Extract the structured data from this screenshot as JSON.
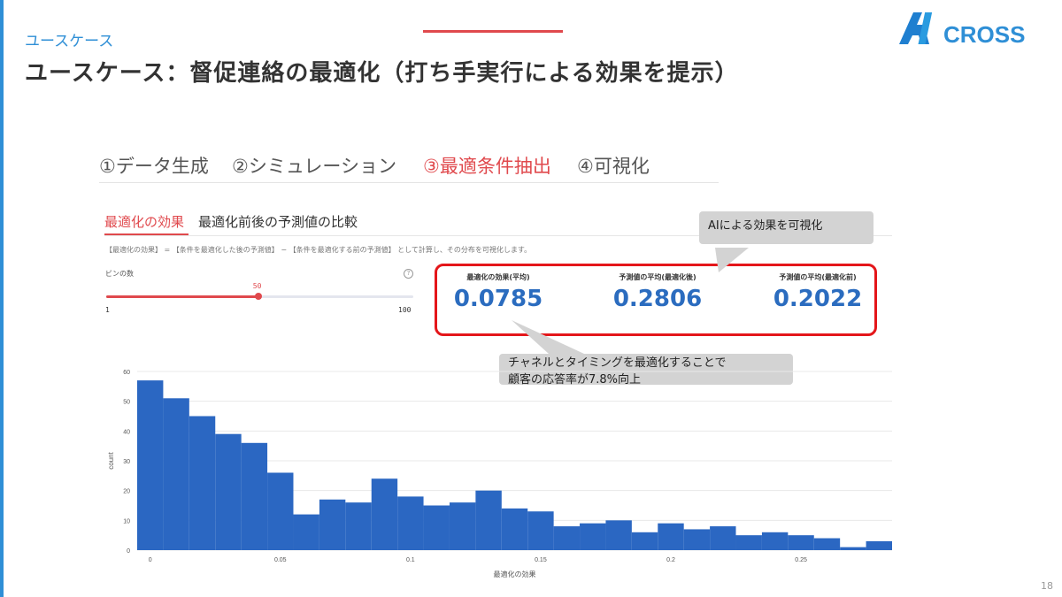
{
  "slide": {
    "section_label": "ユースケース",
    "title": "ユースケース：督促連絡の最適化（打ち手実行による効果を提示）",
    "logo_text": "AICROSS",
    "page_number": "18"
  },
  "steps": [
    {
      "label": "①データ生成",
      "active": false
    },
    {
      "label": "②シミュレーション",
      "active": false
    },
    {
      "label": "③最適条件抽出",
      "active": true
    },
    {
      "label": "④可視化",
      "active": false
    }
  ],
  "subtabs": {
    "active_label": "最適化の効果",
    "second_label": "最適化前後の予測値の比較"
  },
  "formula_text": "【最適化の効果】 = 【条件を最適化した後の予測値】 − 【条件を最適化する前の予測値】 として計算し、その分布を可視化します。",
  "bins_slider": {
    "label": "ビンの数",
    "value": "50",
    "min": "1",
    "max": "100",
    "fraction": 0.495
  },
  "metrics": [
    {
      "label": "最適化の効果(平均)",
      "value": "0.0785"
    },
    {
      "label": "予測値の平均(最適化後)",
      "value": "0.2806"
    },
    {
      "label": "予測値の平均(最適化前)",
      "value": "0.2022"
    }
  ],
  "callouts": {
    "top": "AIによる効果を可視化",
    "bottom_line1": "チャネルとタイミングを最適化することで",
    "bottom_line2": "顧客の応答率が7.8%向上"
  },
  "colors": {
    "accent_red": "#e0494d",
    "bar_blue": "#2b67c2",
    "metric_blue": "#2b6cbf",
    "highlight_border": "#e4161a",
    "logo_blue": "#2f8fd6"
  },
  "chart_data": {
    "type": "bar",
    "xlabel": "最適化の効果",
    "ylabel": "count",
    "bin_width": 0.01,
    "x_start": -0.005,
    "counts": [
      57,
      51,
      45,
      39,
      36,
      26,
      12,
      17,
      16,
      24,
      18,
      15,
      16,
      20,
      14,
      13,
      8,
      9,
      10,
      6,
      9,
      7,
      8,
      5,
      6,
      5,
      4,
      1,
      3
    ],
    "xlim": [
      -0.005,
      0.285
    ],
    "ylim": [
      0,
      60
    ],
    "y_ticks": [
      0,
      10,
      20,
      30,
      40,
      50,
      60
    ],
    "x_ticks": [
      0,
      0.05,
      0.1,
      0.15,
      0.2,
      0.25
    ],
    "x_tick_labels": [
      "0",
      "0.05",
      "0.1",
      "0.15",
      "0.2",
      "0.25"
    ],
    "grid": true
  }
}
